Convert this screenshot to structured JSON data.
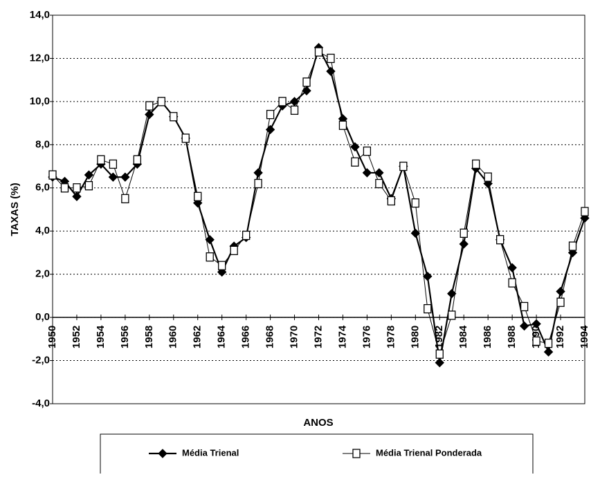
{
  "chart_data": {
    "type": "line",
    "y_label": "TAXAS (%)",
    "x_label": "ANOS",
    "x": [
      1950,
      1951,
      1952,
      1953,
      1954,
      1955,
      1956,
      1957,
      1958,
      1959,
      1960,
      1961,
      1962,
      1963,
      1964,
      1965,
      1966,
      1967,
      1968,
      1969,
      1970,
      1971,
      1972,
      1973,
      1974,
      1975,
      1976,
      1977,
      1978,
      1979,
      1980,
      1981,
      1982,
      1983,
      1984,
      1985,
      1986,
      1987,
      1988,
      1989,
      1990,
      1991,
      1992,
      1993,
      1994
    ],
    "xlim": [
      1950,
      1994
    ],
    "xticks": [
      1950,
      1952,
      1954,
      1956,
      1958,
      1960,
      1962,
      1964,
      1966,
      1968,
      1970,
      1972,
      1974,
      1976,
      1978,
      1980,
      1982,
      1984,
      1986,
      1988,
      1990,
      1992,
      1994
    ],
    "ylim": [
      -4,
      14
    ],
    "yticks": [
      {
        "value": -4,
        "label": "-4,0"
      },
      {
        "value": -2,
        "label": "-2,0"
      },
      {
        "value": 0,
        "label": "0,0"
      },
      {
        "value": 2,
        "label": "2,0"
      },
      {
        "value": 4,
        "label": "4,0"
      },
      {
        "value": 6,
        "label": "6,0"
      },
      {
        "value": 8,
        "label": "8,0"
      },
      {
        "value": 10,
        "label": "10,0"
      },
      {
        "value": 12,
        "label": "12,0"
      },
      {
        "value": 14,
        "label": "14,0"
      }
    ],
    "grid": true,
    "legend": "bottom",
    "series": [
      {
        "name": "Média Trienal",
        "color": "#000000",
        "marker": "diamond",
        "values": [
          6.5,
          6.3,
          5.6,
          6.6,
          7.1,
          6.5,
          6.5,
          7.1,
          9.4,
          10.0,
          9.3,
          8.3,
          5.3,
          3.6,
          2.1,
          3.3,
          3.7,
          6.7,
          8.7,
          9.8,
          10.0,
          10.5,
          12.5,
          11.4,
          9.2,
          7.9,
          6.7,
          6.7,
          5.5,
          7.0,
          3.9,
          1.9,
          -2.1,
          1.1,
          3.4,
          6.9,
          6.2,
          3.6,
          2.3,
          -0.4,
          -0.3,
          -1.6,
          1.2,
          3.0,
          4.6
        ]
      },
      {
        "name": "Média Trienal Ponderada",
        "color": "#000000",
        "marker": "square",
        "values": [
          6.6,
          6.0,
          6.0,
          6.1,
          7.3,
          7.1,
          5.5,
          7.3,
          9.8,
          10.0,
          9.3,
          8.3,
          5.6,
          2.8,
          2.4,
          3.1,
          3.8,
          6.2,
          9.4,
          10.0,
          9.6,
          10.9,
          12.3,
          12.0,
          8.9,
          7.2,
          7.7,
          6.2,
          5.4,
          7.0,
          5.3,
          0.4,
          -1.7,
          0.1,
          3.9,
          7.1,
          6.5,
          3.6,
          1.6,
          0.5,
          -1.1,
          -1.2,
          0.7,
          3.3,
          4.9
        ]
      }
    ]
  }
}
